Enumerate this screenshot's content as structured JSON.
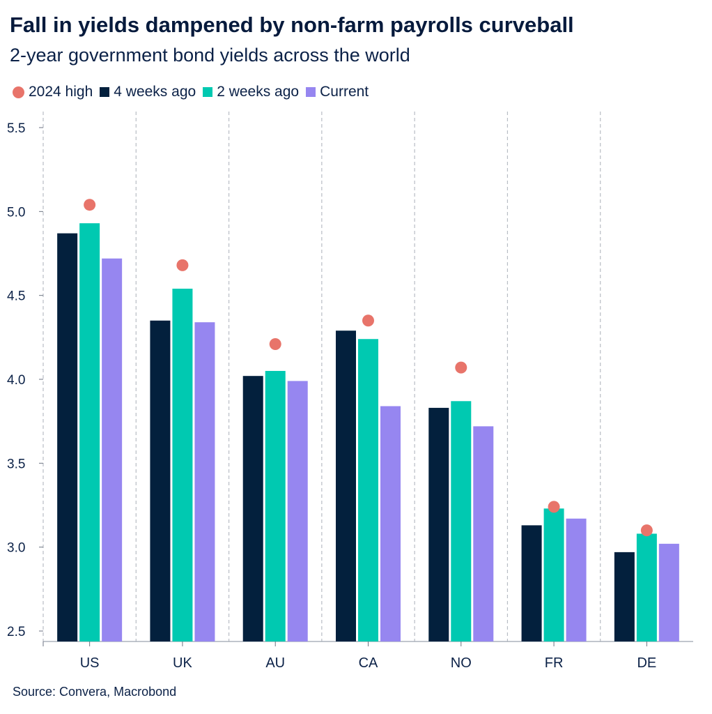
{
  "title": "Fall in yields dampened by non-farm payrolls curveball",
  "subtitle": "2-year government bond yields across the world",
  "source": "Source: Convera, Macrobond",
  "legend": [
    {
      "label": "2024 high",
      "marker": "dot",
      "color": "#E8746A"
    },
    {
      "label": "4 weeks ago",
      "marker": "square",
      "color": "#03203D"
    },
    {
      "label": "2 weeks ago",
      "marker": "square",
      "color": "#00C9B1"
    },
    {
      "label": "Current",
      "marker": "square",
      "color": "#9686F0"
    }
  ],
  "chart_data": {
    "type": "bar",
    "categories": [
      "US",
      "UK",
      "AU",
      "CA",
      "NO",
      "FR",
      "DE"
    ],
    "series": [
      {
        "name": "4 weeks ago",
        "color": "#03203D",
        "values": [
          4.87,
          4.35,
          4.02,
          4.29,
          3.83,
          3.13,
          2.97
        ]
      },
      {
        "name": "2 weeks ago",
        "color": "#00C9B1",
        "values": [
          4.93,
          4.54,
          4.05,
          4.24,
          3.87,
          3.23,
          3.08
        ]
      },
      {
        "name": "Current",
        "color": "#9686F0",
        "values": [
          4.72,
          4.34,
          3.99,
          3.84,
          3.72,
          3.17,
          3.02
        ]
      }
    ],
    "markers": {
      "name": "2024 high",
      "color": "#E8746A",
      "values": [
        5.04,
        4.68,
        4.21,
        4.35,
        4.07,
        3.24,
        3.1
      ]
    },
    "ylim": [
      2.5,
      5.5
    ],
    "yticks": [
      "2.5",
      "3.0",
      "3.5",
      "4.0",
      "4.5",
      "5.0",
      "5.5"
    ],
    "grid": "vertical dashed separators between categories"
  }
}
